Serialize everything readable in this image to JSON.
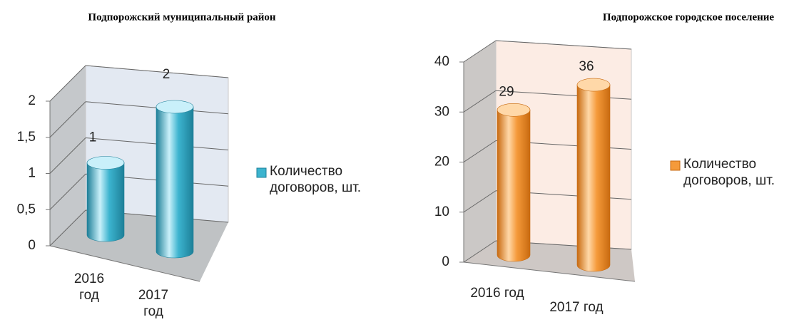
{
  "chart_data": [
    {
      "type": "bar",
      "title": "Подпорожский муниципальный район",
      "categories": [
        "2016 год",
        "2017 год"
      ],
      "series": [
        {
          "name": "Количество договоров, шт.",
          "color": "#3cb4cf",
          "values": [
            1,
            2
          ]
        }
      ],
      "ylim": [
        0,
        2
      ],
      "yticks": [
        0,
        {
          "value": 0.5,
          "label": "0,5"
        },
        1,
        {
          "value": 1.5,
          "label": "1,5"
        },
        2
      ],
      "grid": true
    },
    {
      "type": "bar",
      "title": "Подпорожское городское поселение",
      "categories": [
        "2016 год",
        "2017 год"
      ],
      "series": [
        {
          "name": "Количество договоров, шт.",
          "color": "#f59a3a",
          "values": [
            29,
            36
          ]
        }
      ],
      "ylim": [
        0,
        40
      ],
      "yticks": [
        0,
        10,
        20,
        30,
        40
      ],
      "grid": true
    }
  ]
}
